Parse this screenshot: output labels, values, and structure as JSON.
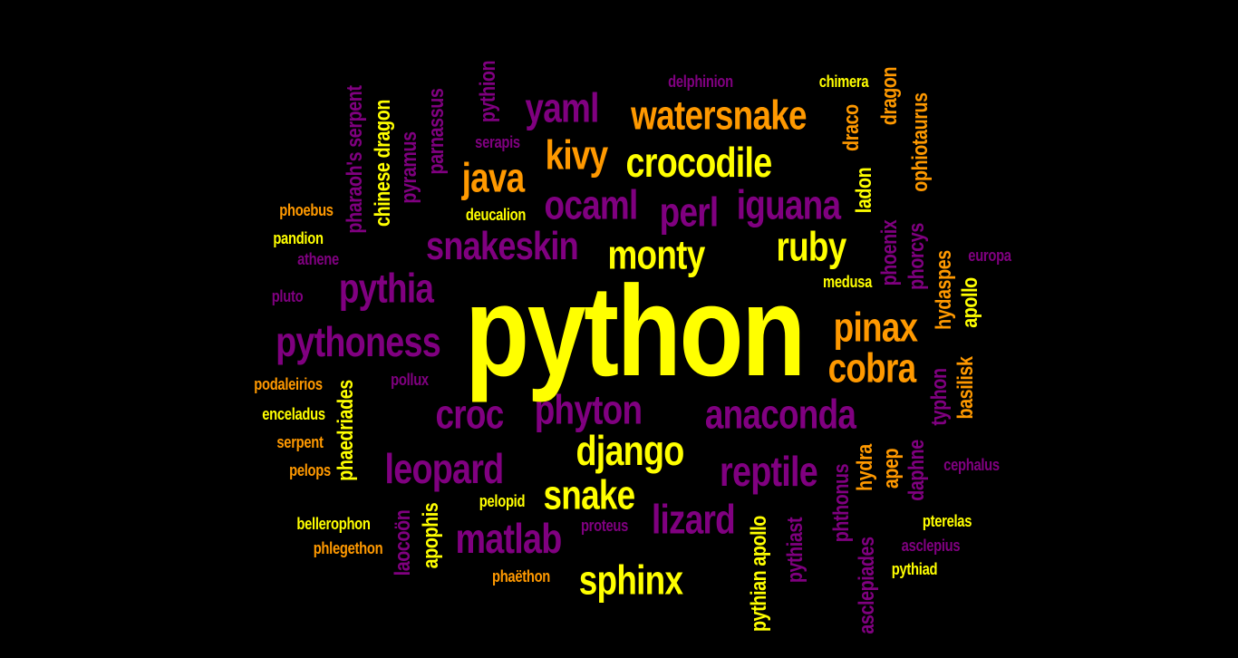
{
  "background_color": "#000000",
  "palette": {
    "yellow": "#ffff00",
    "orange": "#ff9900",
    "purple": "#800080"
  },
  "words": [
    {
      "text": "python",
      "color": "yellow"
    },
    {
      "text": "pythoness",
      "color": "purple"
    },
    {
      "text": "pythia",
      "color": "purple"
    },
    {
      "text": "snakeskin",
      "color": "purple"
    },
    {
      "text": "monty",
      "color": "yellow"
    },
    {
      "text": "ruby",
      "color": "yellow"
    },
    {
      "text": "pinax",
      "color": "orange"
    },
    {
      "text": "cobra",
      "color": "orange"
    },
    {
      "text": "anaconda",
      "color": "purple"
    },
    {
      "text": "phyton",
      "color": "purple"
    },
    {
      "text": "croc",
      "color": "purple"
    },
    {
      "text": "django",
      "color": "yellow"
    },
    {
      "text": "leopard",
      "color": "purple"
    },
    {
      "text": "reptile",
      "color": "purple"
    },
    {
      "text": "snake",
      "color": "yellow"
    },
    {
      "text": "lizard",
      "color": "purple"
    },
    {
      "text": "matlab",
      "color": "purple"
    },
    {
      "text": "sphinx",
      "color": "yellow"
    },
    {
      "text": "crocodile",
      "color": "yellow"
    },
    {
      "text": "watersnake",
      "color": "orange"
    },
    {
      "text": "yaml",
      "color": "purple"
    },
    {
      "text": "kivy",
      "color": "orange"
    },
    {
      "text": "java",
      "color": "orange"
    },
    {
      "text": "ocaml",
      "color": "purple"
    },
    {
      "text": "perl",
      "color": "purple"
    },
    {
      "text": "iguana",
      "color": "purple"
    },
    {
      "text": "delphinion",
      "color": "purple"
    },
    {
      "text": "chimera",
      "color": "yellow"
    },
    {
      "text": "serapis",
      "color": "purple"
    },
    {
      "text": "deucalion",
      "color": "yellow"
    },
    {
      "text": "phoebus",
      "color": "orange"
    },
    {
      "text": "pandion",
      "color": "yellow"
    },
    {
      "text": "athene",
      "color": "purple"
    },
    {
      "text": "pluto",
      "color": "purple"
    },
    {
      "text": "medusa",
      "color": "yellow"
    },
    {
      "text": "europa",
      "color": "purple"
    },
    {
      "text": "podaleirios",
      "color": "orange"
    },
    {
      "text": "pollux",
      "color": "purple"
    },
    {
      "text": "enceladus",
      "color": "yellow"
    },
    {
      "text": "serpent",
      "color": "orange"
    },
    {
      "text": "pelops",
      "color": "orange"
    },
    {
      "text": "pelopid",
      "color": "yellow"
    },
    {
      "text": "bellerophon",
      "color": "yellow"
    },
    {
      "text": "phlegethon",
      "color": "orange"
    },
    {
      "text": "proteus",
      "color": "purple"
    },
    {
      "text": "phaëthon",
      "color": "orange"
    },
    {
      "text": "cephalus",
      "color": "purple"
    },
    {
      "text": "pterelas",
      "color": "yellow"
    },
    {
      "text": "asclepius",
      "color": "purple"
    },
    {
      "text": "pythiad",
      "color": "yellow"
    },
    {
      "text": "pharaoh's serpent",
      "color": "purple"
    },
    {
      "text": "chinese dragon",
      "color": "yellow"
    },
    {
      "text": "pyramus",
      "color": "purple"
    },
    {
      "text": "parnassus",
      "color": "purple"
    },
    {
      "text": "pythion",
      "color": "purple"
    },
    {
      "text": "draco",
      "color": "orange"
    },
    {
      "text": "dragon",
      "color": "orange"
    },
    {
      "text": "ophiotaurus",
      "color": "orange"
    },
    {
      "text": "ladon",
      "color": "yellow"
    },
    {
      "text": "phoenix",
      "color": "purple"
    },
    {
      "text": "phorcys",
      "color": "purple"
    },
    {
      "text": "hydaspes",
      "color": "orange"
    },
    {
      "text": "apollo",
      "color": "yellow"
    },
    {
      "text": "basilisk",
      "color": "orange"
    },
    {
      "text": "typhon",
      "color": "purple"
    },
    {
      "text": "phaedriades",
      "color": "yellow"
    },
    {
      "text": "laocoön",
      "color": "purple"
    },
    {
      "text": "apophis",
      "color": "yellow"
    },
    {
      "text": "pythian apollo",
      "color": "yellow"
    },
    {
      "text": "pythiast",
      "color": "purple"
    },
    {
      "text": "phthonus",
      "color": "purple"
    },
    {
      "text": "hydra",
      "color": "orange"
    },
    {
      "text": "apep",
      "color": "orange"
    },
    {
      "text": "daphne",
      "color": "purple"
    },
    {
      "text": "asclepiades",
      "color": "purple"
    }
  ]
}
